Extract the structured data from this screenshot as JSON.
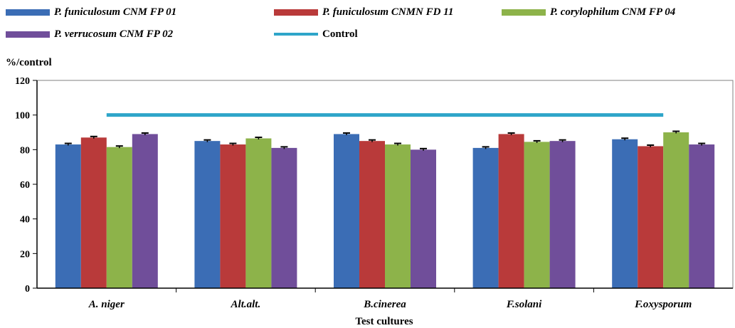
{
  "chart_data": {
    "type": "bar",
    "title": "",
    "ylabel": "%/control",
    "xlabel": "Test cultures",
    "ylim": [
      0,
      120
    ],
    "yticks": [
      0,
      20,
      40,
      60,
      80,
      100,
      120
    ],
    "categories": [
      "A. niger",
      "Alt.alt.",
      "B.cinerea",
      "F.solani",
      "F.oxysporum"
    ],
    "series": [
      {
        "name": "P. funiculosum CNM FP 01",
        "color": "#3B6DB5",
        "values": [
          83,
          85,
          89,
          81,
          86
        ]
      },
      {
        "name": "P. funiculosum CNMN FD 11",
        "color": "#B93A3A",
        "values": [
          87,
          83,
          85,
          89,
          82
        ]
      },
      {
        "name": "P. corylophilum CNM FP 04",
        "color": "#8DB34A",
        "values": [
          81.5,
          86.5,
          83,
          84.5,
          90
        ]
      },
      {
        "name": "P. verrucosum CNM FP 02",
        "color": "#704E9A",
        "values": [
          89,
          81,
          80,
          85,
          83
        ]
      }
    ],
    "control": {
      "name": "Control",
      "color": "#2EA5C9",
      "value": 100
    },
    "legend_position": "top",
    "grid": false
  }
}
